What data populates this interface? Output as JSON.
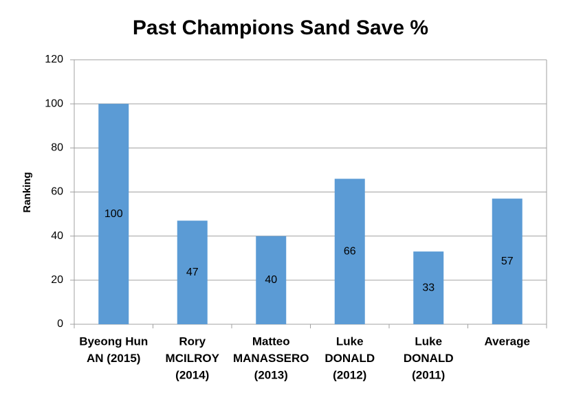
{
  "chart_data": {
    "type": "bar",
    "title": "Past Champions Sand Save %",
    "y_label": "Ranking",
    "categories": [
      [
        "Byeong Hun",
        "AN (2015)"
      ],
      [
        "Rory",
        "MCILROY",
        "(2014)"
      ],
      [
        "Matteo",
        "MANASSERO",
        "(2013)"
      ],
      [
        "Luke",
        "DONALD",
        "(2012)"
      ],
      [
        "Luke",
        "DONALD",
        "(2011)"
      ],
      [
        "Average"
      ]
    ],
    "values": [
      100,
      47,
      40,
      66,
      33,
      57
    ],
    "color": "#5b9bd5",
    "ylim": [
      0,
      120
    ],
    "yticks": [
      0,
      20,
      40,
      60,
      80,
      100,
      120
    ],
    "grid": true,
    "data_labels": true
  }
}
